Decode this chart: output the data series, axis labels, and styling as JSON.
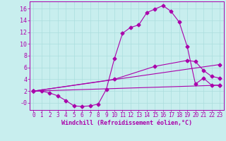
{
  "xlabel": "Windchill (Refroidissement éolien,°C)",
  "background_color": "#c8eeee",
  "line_color": "#aa00aa",
  "grid_color": "#aadddd",
  "xlim": [
    -0.5,
    23.5
  ],
  "ylim": [
    -1.2,
    17.2
  ],
  "xticks": [
    0,
    1,
    2,
    3,
    4,
    5,
    6,
    7,
    8,
    9,
    10,
    11,
    12,
    13,
    14,
    15,
    16,
    17,
    18,
    19,
    20,
    21,
    22,
    23
  ],
  "yticks": [
    0,
    2,
    4,
    6,
    8,
    10,
    12,
    14,
    16
  ],
  "ytick_labels": [
    "-0",
    "2",
    "4",
    "6",
    "8",
    "10",
    "12",
    "14",
    "16"
  ],
  "line1_x": [
    0,
    1,
    2,
    3,
    4,
    5,
    6,
    7,
    8,
    9,
    10,
    11,
    12,
    13,
    14,
    15,
    16,
    17,
    18,
    19,
    20,
    21,
    22,
    23
  ],
  "line1_y": [
    2.0,
    2.0,
    1.7,
    1.2,
    0.4,
    -0.5,
    -0.6,
    -0.5,
    -0.2,
    2.3,
    7.5,
    11.8,
    12.8,
    13.2,
    15.3,
    15.9,
    16.5,
    15.5,
    13.7,
    9.5,
    3.2,
    4.2,
    3.0,
    3.0
  ],
  "line2_x": [
    0,
    23
  ],
  "line2_y": [
    2.0,
    3.0
  ],
  "line3_x": [
    0,
    23
  ],
  "line3_y": [
    2.0,
    6.5
  ],
  "line4_x": [
    0,
    10,
    15,
    19,
    20,
    21,
    22,
    23
  ],
  "line4_y": [
    2.0,
    4.0,
    6.2,
    7.2,
    7.0,
    5.5,
    4.5,
    4.2
  ]
}
